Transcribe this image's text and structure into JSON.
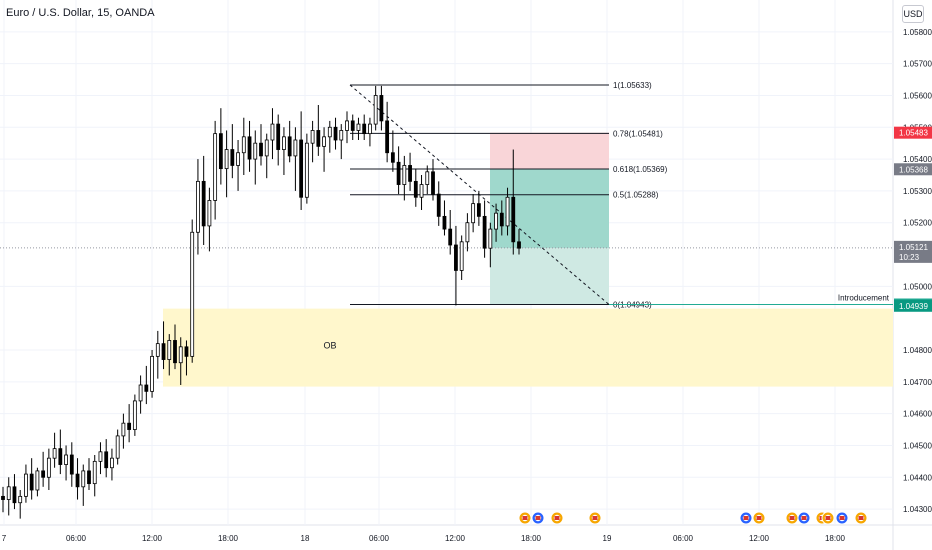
{
  "header": {
    "title": "Euro / U.S. Dollar, 15, OANDA",
    "currency": "USD"
  },
  "chart_data": {
    "type": "candlestick",
    "symbol": "EURUSD",
    "timeframe": "15",
    "ylim": [
      1.0425,
      1.059
    ],
    "y_ticks": [
      "1.05800",
      "1.05700",
      "1.05600",
      "1.05500",
      "1.05400",
      "1.05300",
      "1.05200",
      "1.05000",
      "1.04800",
      "1.04700",
      "1.04600",
      "1.04500",
      "1.04400",
      "1.04300"
    ],
    "x_ticks": [
      "7",
      "06:00",
      "12:00",
      "18:00",
      "18",
      "06:00",
      "12:00",
      "18:00",
      "19",
      "06:00",
      "12:00",
      "18:00"
    ],
    "ohlc": [
      [
        1.0434,
        1.0437,
        1.0429,
        1.0433
      ],
      [
        1.0433,
        1.044,
        1.0428,
        1.0437
      ],
      [
        1.0437,
        1.0441,
        1.043,
        1.0432
      ],
      [
        1.0432,
        1.0436,
        1.0427,
        1.0434
      ],
      [
        1.0434,
        1.0444,
        1.0432,
        1.0441
      ],
      [
        1.0441,
        1.0446,
        1.0433,
        1.0436
      ],
      [
        1.0436,
        1.0443,
        1.0434,
        1.0442
      ],
      [
        1.0442,
        1.0448,
        1.0437,
        1.044
      ],
      [
        1.044,
        1.0449,
        1.0436,
        1.0446
      ],
      [
        1.0446,
        1.0454,
        1.0443,
        1.0449
      ],
      [
        1.0449,
        1.0455,
        1.0441,
        1.0444
      ],
      [
        1.0444,
        1.045,
        1.0439,
        1.0447
      ],
      [
        1.0447,
        1.0451,
        1.0437,
        1.0441
      ],
      [
        1.0441,
        1.0446,
        1.0433,
        1.0437
      ],
      [
        1.0437,
        1.0444,
        1.0431,
        1.0442
      ],
      [
        1.0442,
        1.0446,
        1.0436,
        1.0438
      ],
      [
        1.0438,
        1.0447,
        1.0434,
        1.0445
      ],
      [
        1.0445,
        1.0451,
        1.0441,
        1.0448
      ],
      [
        1.0448,
        1.0452,
        1.044,
        1.0443
      ],
      [
        1.0443,
        1.0449,
        1.0439,
        1.0446
      ],
      [
        1.0446,
        1.0455,
        1.0444,
        1.0453
      ],
      [
        1.0453,
        1.046,
        1.0449,
        1.0457
      ],
      [
        1.0457,
        1.0463,
        1.0451,
        1.0455
      ],
      [
        1.0455,
        1.0466,
        1.0453,
        1.0464
      ],
      [
        1.0464,
        1.0472,
        1.046,
        1.0469
      ],
      [
        1.0469,
        1.0475,
        1.0463,
        1.0467
      ],
      [
        1.0467,
        1.048,
        1.0465,
        1.0478
      ],
      [
        1.0478,
        1.0486,
        1.0471,
        1.0482
      ],
      [
        1.0482,
        1.0489,
        1.0474,
        1.0477
      ],
      [
        1.0477,
        1.0485,
        1.0472,
        1.0483
      ],
      [
        1.0483,
        1.0488,
        1.0474,
        1.0476
      ],
      [
        1.0476,
        1.0484,
        1.0469,
        1.0481
      ],
      [
        1.0481,
        1.0483,
        1.0472,
        1.0478
      ],
      [
        1.0478,
        1.0521,
        1.0476,
        1.0517
      ],
      [
        1.0517,
        1.054,
        1.051,
        1.0533
      ],
      [
        1.0533,
        1.0541,
        1.0513,
        1.0519
      ],
      [
        1.0519,
        1.0531,
        1.0511,
        1.0527
      ],
      [
        1.0527,
        1.0552,
        1.0521,
        1.0548
      ],
      [
        1.0548,
        1.0556,
        1.0532,
        1.0537
      ],
      [
        1.0537,
        1.0549,
        1.0528,
        1.0543
      ],
      [
        1.0543,
        1.0551,
        1.0534,
        1.0538
      ],
      [
        1.0538,
        1.0546,
        1.053,
        1.0542
      ],
      [
        1.0542,
        1.0553,
        1.0535,
        1.0547
      ],
      [
        1.0547,
        1.0552,
        1.0536,
        1.054
      ],
      [
        1.054,
        1.0549,
        1.0532,
        1.0545
      ],
      [
        1.0545,
        1.0551,
        1.0538,
        1.0541
      ],
      [
        1.0541,
        1.0548,
        1.0534,
        1.0546
      ],
      [
        1.0546,
        1.0556,
        1.054,
        1.0551
      ],
      [
        1.0551,
        1.0554,
        1.0538,
        1.0543
      ],
      [
        1.0543,
        1.055,
        1.0535,
        1.0547
      ],
      [
        1.0547,
        1.0552,
        1.0539,
        1.0541
      ],
      [
        1.0541,
        1.055,
        1.053,
        1.0546
      ],
      [
        1.0546,
        1.0555,
        1.0524,
        1.0528
      ],
      [
        1.0528,
        1.0548,
        1.0526,
        1.0545
      ],
      [
        1.0545,
        1.0552,
        1.0539,
        1.0549
      ],
      [
        1.0549,
        1.0557,
        1.0541,
        1.0544
      ],
      [
        1.0544,
        1.055,
        1.0536,
        1.0547
      ],
      [
        1.0547,
        1.0552,
        1.0542,
        1.055
      ],
      [
        1.055,
        1.0553,
        1.0543,
        1.0546
      ],
      [
        1.0546,
        1.0551,
        1.054,
        1.0549
      ],
      [
        1.0549,
        1.0555,
        1.0545,
        1.0552
      ],
      [
        1.0552,
        1.0554,
        1.0546,
        1.0549
      ],
      [
        1.0549,
        1.0553,
        1.0546,
        1.0551
      ],
      [
        1.0551,
        1.0554,
        1.0546,
        1.0548
      ],
      [
        1.0548,
        1.0553,
        1.0544,
        1.0551
      ],
      [
        1.0551,
        1.0563,
        1.0549,
        1.056
      ],
      [
        1.056,
        1.0563,
        1.0549,
        1.0552
      ],
      [
        1.0552,
        1.0558,
        1.0539,
        1.0542
      ],
      [
        1.0542,
        1.0549,
        1.0536,
        1.0539
      ],
      [
        1.0539,
        1.0544,
        1.0529,
        1.0532
      ],
      [
        1.0532,
        1.0541,
        1.0527,
        1.0538
      ],
      [
        1.0538,
        1.0542,
        1.053,
        1.0533
      ],
      [
        1.0533,
        1.0537,
        1.0525,
        1.0528
      ],
      [
        1.0528,
        1.0535,
        1.0524,
        1.0532
      ],
      [
        1.0532,
        1.0538,
        1.0529,
        1.0536
      ],
      [
        1.0536,
        1.054,
        1.0527,
        1.0529
      ],
      [
        1.0529,
        1.0533,
        1.0519,
        1.0522
      ],
      [
        1.0522,
        1.0527,
        1.0516,
        1.0518
      ],
      [
        1.0518,
        1.0524,
        1.051,
        1.0513
      ],
      [
        1.0513,
        1.0519,
        1.0494,
        1.0505
      ],
      [
        1.0505,
        1.0516,
        1.0502,
        1.0514
      ],
      [
        1.0514,
        1.0523,
        1.0511,
        1.052
      ],
      [
        1.052,
        1.0529,
        1.0517,
        1.0526
      ],
      [
        1.0526,
        1.053,
        1.0519,
        1.0522
      ],
      [
        1.0522,
        1.0527,
        1.0509,
        1.0512
      ],
      [
        1.0512,
        1.052,
        1.0506,
        1.0518
      ],
      [
        1.0518,
        1.0526,
        1.0514,
        1.0523
      ],
      [
        1.0523,
        1.0527,
        1.0516,
        1.0519
      ],
      [
        1.0519,
        1.0531,
        1.0516,
        1.0528
      ],
      [
        1.0528,
        1.0543,
        1.051,
        1.0514
      ],
      [
        1.0514,
        1.0518,
        1.051,
        1.0512
      ]
    ],
    "fibonacci": [
      {
        "label": "1(1.05633)",
        "price": 1.05633
      },
      {
        "label": "0.78(1.05481)",
        "price": 1.05481
      },
      {
        "label": "0.618(1.05369)",
        "price": 1.05369
      },
      {
        "label": "0.5(1.05288)",
        "price": 1.05288
      },
      {
        "label": "0(1.04943)",
        "price": 1.04943
      }
    ],
    "order_block": {
      "label": "OB",
      "top": 1.0493,
      "bottom": 1.04685,
      "color": "#fff7cc"
    },
    "position": {
      "stop": 1.05483,
      "entry": 1.05368,
      "target": 1.04943,
      "risk_color": "#f9d5d8",
      "reward_color": "#cfe9e3",
      "filled_color": "#9fd8cc"
    },
    "annotations": [
      {
        "label": "Introducement",
        "price": 1.04943
      }
    ],
    "last_price": {
      "value": "1.05121",
      "countdown": "10:23"
    },
    "price_labels": [
      {
        "text": "1.05483",
        "price": 1.05483,
        "color": "#f23645"
      },
      {
        "text": "1.05368",
        "price": 1.05368,
        "color": "#787b86"
      },
      {
        "text": "1.04943",
        "price": 1.04943,
        "color": "#22ab94"
      },
      {
        "text": "1.04939",
        "price": 1.04939,
        "color": "#089981"
      }
    ],
    "colors": {
      "up": "#000000",
      "down": "#000000",
      "grid": "#f0f3fa",
      "axis_text": "#131722"
    },
    "event_icon_count": 14
  }
}
